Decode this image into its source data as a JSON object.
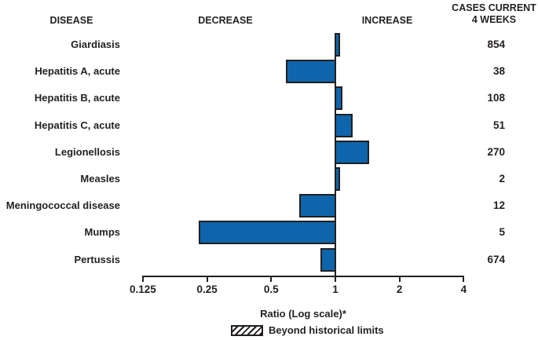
{
  "header": {
    "disease": "DISEASE",
    "decrease": "DECREASE",
    "increase": "INCREASE",
    "cases_line1": "CASES CURRENT",
    "cases_line2": "4 WEEKS"
  },
  "chart_data": {
    "type": "bar",
    "orientation": "horizontal",
    "scale": "log2",
    "baseline": 1,
    "categories": [
      "Giardiasis",
      "Hepatitis A, acute",
      "Hepatitis B, acute",
      "Hepatitis C, acute",
      "Legionellosis",
      "Measles",
      "Meningococcal disease",
      "Mumps",
      "Pertussis"
    ],
    "series": [
      {
        "name": "Ratio (Log scale)",
        "values": [
          1.04,
          0.59,
          1.07,
          1.2,
          1.43,
          1.04,
          0.68,
          0.23,
          0.86
        ]
      }
    ],
    "cases_current_4_weeks": [
      854,
      38,
      108,
      51,
      270,
      2,
      12,
      5,
      674
    ],
    "beyond_historical_limits": [
      false,
      false,
      false,
      false,
      false,
      false,
      false,
      false,
      false
    ],
    "x_ticks": [
      0.125,
      0.25,
      0.5,
      1,
      2,
      4
    ],
    "x_tick_labels": [
      "0.125",
      "0.25",
      "0.5",
      "1",
      "2",
      "4"
    ],
    "xlim": [
      0.125,
      4
    ],
    "xlabel": "Ratio (Log scale)*",
    "legend": [
      {
        "label": "Beyond historical limits",
        "style": "hatched"
      }
    ],
    "bar_color": "#0e65ab",
    "outline_color": "#231f20",
    "grid": false,
    "legend_position": "bottom"
  }
}
